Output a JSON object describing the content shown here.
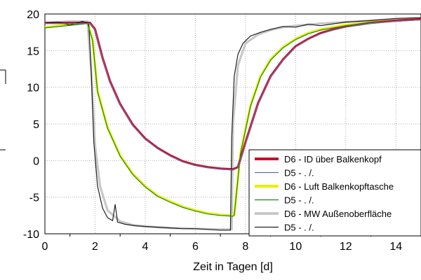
{
  "chart_data": {
    "type": "line",
    "xlabel": "Zeit in Tagen [d]",
    "ylabel": "",
    "xlim": [
      0,
      15
    ],
    "ylim": [
      -10,
      20
    ],
    "xticks": [
      0,
      2,
      4,
      6,
      8,
      10,
      12,
      14
    ],
    "yticks": [
      -10,
      -5,
      0,
      5,
      10,
      15,
      20
    ],
    "grid": true,
    "legend_position": "right",
    "series": [
      {
        "name": "D6 - ID über Balkenkopf",
        "color": "#c8102e",
        "bold": true,
        "x": [
          0,
          1.8,
          2.0,
          2.3,
          2.6,
          3.0,
          3.5,
          4.0,
          4.5,
          5.0,
          5.5,
          6.0,
          6.5,
          7.0,
          7.5,
          7.7,
          8.0,
          8.5,
          9.0,
          9.5,
          10.0,
          10.5,
          11.0,
          11.5,
          12.0,
          13.0,
          14.0,
          15.0
        ],
        "y": [
          18.8,
          18.8,
          17.9,
          14.0,
          10.8,
          7.7,
          4.9,
          3.0,
          1.7,
          0.7,
          -0.1,
          -0.6,
          -0.9,
          -1.1,
          -1.2,
          -0.9,
          2.5,
          7.8,
          11.5,
          13.8,
          15.6,
          16.6,
          17.4,
          17.9,
          18.3,
          18.8,
          19.1,
          19.3
        ]
      },
      {
        "name": "D5 - . /.",
        "color": "#6a6aa0",
        "bold": false,
        "x": [
          0,
          1.8,
          2.0,
          2.3,
          2.6,
          3.0,
          3.5,
          4.0,
          4.5,
          5.0,
          5.5,
          6.0,
          6.5,
          7.0,
          7.5,
          7.7,
          8.0,
          8.5,
          9.0,
          9.5,
          10.0,
          10.5,
          11.0,
          11.5,
          12.0,
          13.0,
          14.0,
          15.0
        ],
        "y": [
          18.7,
          18.7,
          17.8,
          13.9,
          10.7,
          7.6,
          4.8,
          2.9,
          1.6,
          0.6,
          -0.2,
          -0.7,
          -1.0,
          -1.2,
          -1.3,
          -1.0,
          2.4,
          7.7,
          11.4,
          13.7,
          15.5,
          16.5,
          17.3,
          17.8,
          18.2,
          18.7,
          19.0,
          19.2
        ]
      },
      {
        "name": "D6 - Luft Balkenkopftasche",
        "color": "#e8f000",
        "bold": true,
        "x": [
          0,
          1.7,
          1.9,
          2.1,
          2.5,
          3.0,
          3.5,
          4.0,
          4.5,
          5.0,
          5.5,
          6.0,
          6.5,
          7.0,
          7.5,
          7.55,
          7.8,
          8.2,
          8.6,
          9.0,
          9.5,
          10.0,
          10.5,
          11.0,
          12.0,
          13.0,
          14.0,
          15.0
        ],
        "y": [
          18.2,
          18.8,
          16.5,
          9.5,
          4.5,
          0.7,
          -1.8,
          -3.5,
          -4.8,
          -5.6,
          -6.3,
          -6.8,
          -7.2,
          -7.4,
          -7.5,
          -7.4,
          1.0,
          7.5,
          11.5,
          13.8,
          15.5,
          16.6,
          17.4,
          17.9,
          18.5,
          18.9,
          19.1,
          19.3
        ]
      },
      {
        "name": "D5 - . /.",
        "color": "#1a8a1a",
        "bold": false,
        "x": [
          0,
          1.7,
          1.9,
          2.1,
          2.5,
          3.0,
          3.5,
          4.0,
          4.5,
          5.0,
          5.5,
          6.0,
          6.5,
          7.0,
          7.5,
          7.55,
          7.8,
          8.2,
          8.6,
          9.0,
          9.5,
          10.0,
          10.5,
          11.0,
          12.0,
          13.0,
          14.0,
          15.0
        ],
        "y": [
          18.1,
          18.7,
          16.4,
          9.4,
          4.4,
          0.6,
          -1.9,
          -3.6,
          -4.9,
          -5.7,
          -6.4,
          -6.9,
          -7.3,
          -7.5,
          -7.6,
          -7.5,
          0.9,
          7.4,
          11.4,
          13.7,
          15.4,
          16.5,
          17.3,
          17.8,
          18.4,
          18.8,
          19.0,
          19.2
        ]
      },
      {
        "name": "D6 - MW Außenoberfläche",
        "color": "#c8c8c8",
        "bold": true,
        "x": [
          0,
          1.0,
          1.7,
          1.85,
          2.0,
          2.2,
          2.5,
          3.0,
          3.5,
          4.0,
          5.0,
          6.0,
          7.0,
          7.45,
          7.5,
          7.7,
          8.0,
          8.5,
          9.0,
          9.5,
          10.0,
          11.0,
          12.0,
          13.0,
          14.0,
          15.0
        ],
        "y": [
          18.8,
          19.0,
          19.0,
          12.0,
          2.0,
          -3.5,
          -6.8,
          -8.3,
          -8.8,
          -9.0,
          -9.2,
          -9.3,
          -9.4,
          -9.4,
          5.0,
          13.0,
          16.0,
          17.2,
          17.8,
          18.2,
          18.4,
          18.7,
          18.9,
          19.1,
          19.3,
          19.4
        ]
      },
      {
        "name": "D5 - . /.",
        "color": "#202020",
        "bold": false,
        "x": [
          0,
          0.5,
          1.0,
          1.5,
          1.75,
          1.85,
          1.95,
          2.1,
          2.3,
          2.5,
          2.7,
          2.8,
          2.9,
          3.2,
          3.6,
          4.0,
          4.5,
          5.0,
          5.5,
          6.0,
          6.5,
          7.0,
          7.4,
          7.45,
          7.55,
          7.7,
          7.9,
          8.2,
          8.6,
          9.0,
          9.5,
          10.0,
          10.5,
          11.0,
          12.0,
          13.0,
          14.0,
          15.0
        ],
        "y": [
          18.7,
          18.9,
          18.5,
          19.0,
          18.7,
          12.0,
          2.5,
          -3.5,
          -6.5,
          -7.8,
          -8.2,
          -6.0,
          -8.4,
          -8.7,
          -8.9,
          -9.0,
          -9.1,
          -9.2,
          -9.3,
          -9.3,
          -9.4,
          -9.5,
          -9.5,
          3.0,
          11.5,
          14.5,
          16.0,
          17.0,
          17.5,
          17.9,
          18.3,
          18.2,
          18.6,
          18.4,
          18.9,
          19.1,
          19.4,
          19.5
        ]
      }
    ]
  }
}
